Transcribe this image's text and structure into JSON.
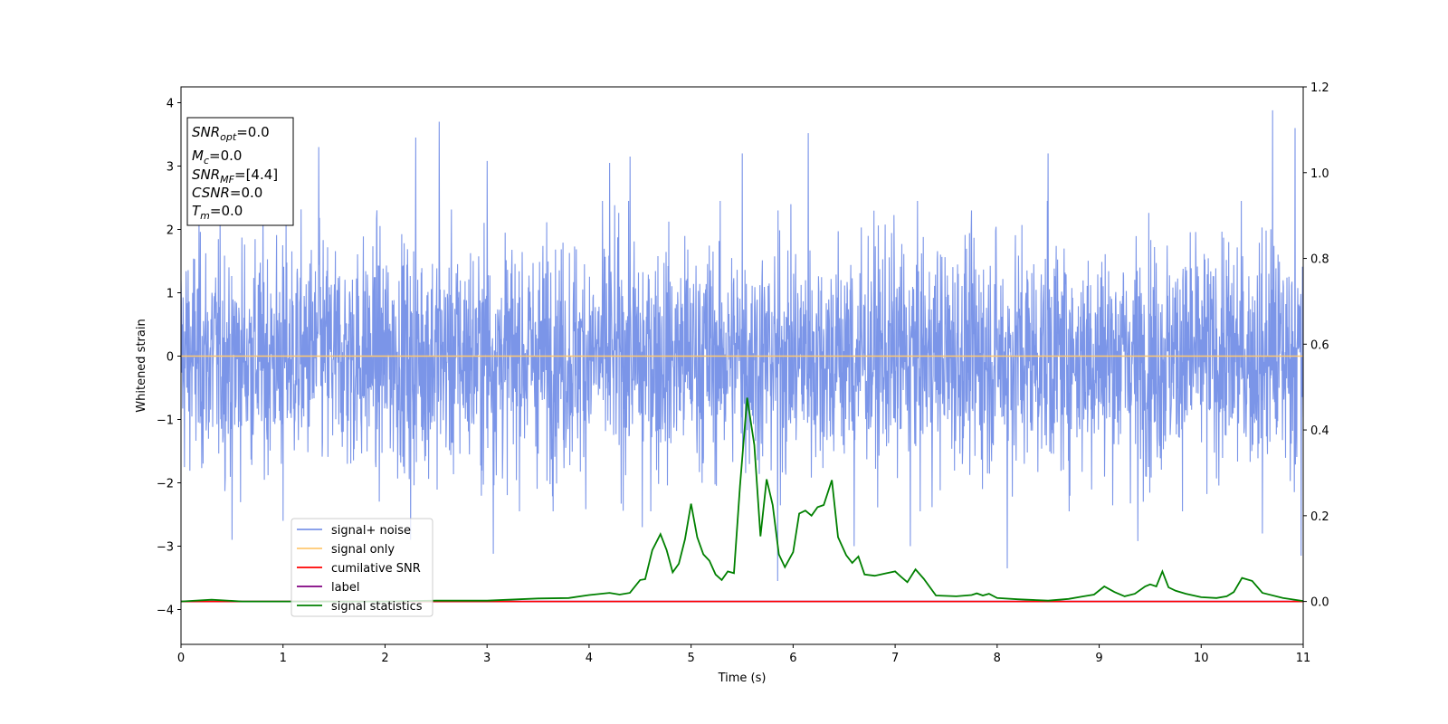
{
  "chart_data": {
    "type": "line",
    "xlabel": "Time (s)",
    "ylabel": "Whitened strain",
    "xlim": [
      0,
      11
    ],
    "ylim": [
      -4.55,
      4.25
    ],
    "y2lim": [
      -0.1,
      1.2
    ],
    "grid": false,
    "x_ticks": [
      "0",
      "1",
      "2",
      "3",
      "4",
      "5",
      "6",
      "7",
      "8",
      "9",
      "10",
      "11"
    ],
    "x_tick_values": [
      0,
      1,
      2,
      3,
      4,
      5,
      6,
      7,
      8,
      9,
      10,
      11
    ],
    "y_ticks": [
      "4",
      "3",
      "2",
      "1",
      "0",
      "−1",
      "−2",
      "−3",
      "−4"
    ],
    "y_tick_values": [
      4,
      3,
      2,
      1,
      0,
      -1,
      -2,
      -3,
      -4
    ],
    "y2_ticks": [
      "1.2",
      "1.0",
      "0.8",
      "0.6",
      "0.4",
      "0.2",
      "0.0"
    ],
    "y2_tick_values": [
      1.2,
      1.0,
      0.8,
      0.6,
      0.4,
      0.2,
      0.0
    ],
    "legend_position": "lower-left",
    "series": [
      {
        "name": "signal+ noise",
        "color": "#7b95e8",
        "axis": "left",
        "style": "noise band approx. ±2 with spikes to about ±3.5",
        "spikes_up": [
          [
            1.35,
            3.3
          ],
          [
            2.3,
            3.45
          ],
          [
            2.53,
            3.7
          ],
          [
            3.0,
            3.08
          ],
          [
            4.2,
            3.05
          ],
          [
            4.4,
            3.15
          ],
          [
            5.5,
            3.2
          ],
          [
            6.15,
            3.52
          ],
          [
            7.15,
            3.25
          ],
          [
            8.5,
            3.2
          ],
          [
            10.6,
            3.15
          ],
          [
            10.7,
            3.88
          ],
          [
            10.92,
            3.6
          ]
        ],
        "spikes_down": [
          [
            0.5,
            -2.9
          ],
          [
            1.0,
            -2.6
          ],
          [
            2.25,
            -2.9
          ],
          [
            3.06,
            -3.12
          ],
          [
            4.52,
            -2.7
          ],
          [
            5.85,
            -3.55
          ],
          [
            6.6,
            -3.0
          ],
          [
            7.15,
            -3.0
          ],
          [
            8.1,
            -3.35
          ],
          [
            9.38,
            -2.92
          ],
          [
            10.6,
            -2.8
          ],
          [
            10.98,
            -3.15
          ]
        ]
      },
      {
        "name": "signal only",
        "color": "#ffc870",
        "axis": "left",
        "values_desc": "flat at 0",
        "x": [
          0,
          11
        ],
        "y": [
          0,
          0
        ]
      },
      {
        "name": "cumilative SNR",
        "color": "#ff0000",
        "axis": "right",
        "x": [
          0,
          11
        ],
        "y": [
          0,
          0
        ]
      },
      {
        "name": "label",
        "color": "#800080",
        "axis": "right",
        "x": [
          0,
          11
        ],
        "y": [
          0,
          0
        ]
      },
      {
        "name": "signal statistics",
        "color": "#008000",
        "axis": "right",
        "x": [
          0,
          0.3,
          0.6,
          1.0,
          1.5,
          2.0,
          2.5,
          3.0,
          3.5,
          3.8,
          4.0,
          4.2,
          4.3,
          4.4,
          4.5,
          4.55,
          4.62,
          4.7,
          4.76,
          4.82,
          4.88,
          4.94,
          5.0,
          5.06,
          5.12,
          5.18,
          5.24,
          5.3,
          5.36,
          5.42,
          5.48,
          5.55,
          5.62,
          5.68,
          5.74,
          5.8,
          5.86,
          5.92,
          6.0,
          6.06,
          6.12,
          6.18,
          6.24,
          6.3,
          6.38,
          6.44,
          6.52,
          6.58,
          6.64,
          6.7,
          6.8,
          6.9,
          7.0,
          7.06,
          7.12,
          7.2,
          7.28,
          7.4,
          7.6,
          7.75,
          7.8,
          7.86,
          7.92,
          8.0,
          8.2,
          8.5,
          8.7,
          8.85,
          8.95,
          9.05,
          9.15,
          9.25,
          9.35,
          9.45,
          9.5,
          9.56,
          9.62,
          9.68,
          9.75,
          9.85,
          10.0,
          10.15,
          10.25,
          10.32,
          10.4,
          10.5,
          10.6,
          10.8,
          11.0
        ],
        "y": [
          0.0,
          0.004,
          0.0,
          0.0,
          0.0,
          0.0,
          0.002,
          0.002,
          0.007,
          0.008,
          0.015,
          0.02,
          0.016,
          0.02,
          0.05,
          0.052,
          0.12,
          0.157,
          0.12,
          0.068,
          0.088,
          0.145,
          0.228,
          0.15,
          0.11,
          0.095,
          0.063,
          0.05,
          0.07,
          0.066,
          0.27,
          0.475,
          0.365,
          0.152,
          0.285,
          0.225,
          0.11,
          0.08,
          0.115,
          0.205,
          0.212,
          0.2,
          0.22,
          0.225,
          0.283,
          0.15,
          0.108,
          0.09,
          0.105,
          0.063,
          0.06,
          0.065,
          0.07,
          0.057,
          0.045,
          0.075,
          0.053,
          0.014,
          0.012,
          0.015,
          0.019,
          0.014,
          0.018,
          0.008,
          0.005,
          0.002,
          0.006,
          0.012,
          0.016,
          0.035,
          0.022,
          0.012,
          0.018,
          0.035,
          0.04,
          0.035,
          0.07,
          0.033,
          0.025,
          0.018,
          0.01,
          0.008,
          0.012,
          0.022,
          0.055,
          0.048,
          0.02,
          0.008,
          0.001
        ]
      }
    ]
  },
  "info_box": [
    {
      "main": "SNR",
      "sub": "opt",
      "value": "=0.0"
    },
    {
      "main": "M",
      "sub": "c",
      "value": "=0.0"
    },
    {
      "main": "SNR",
      "sub": "MF",
      "value": "=[4.4]"
    },
    {
      "main": "CSNR",
      "sub": "",
      "value": "=0.0"
    },
    {
      "main": "T",
      "sub": "m",
      "value": "=0.0"
    }
  ]
}
